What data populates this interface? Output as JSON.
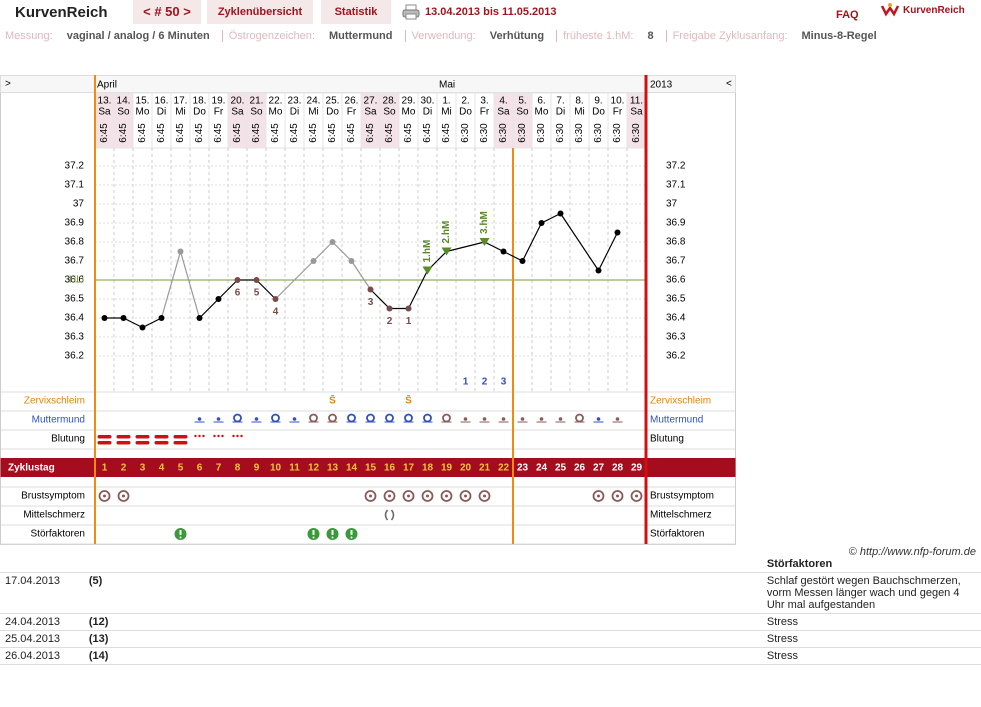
{
  "header": {
    "logo": "KurvenReich",
    "cycle_nav": "< # 50 >",
    "tabs": [
      "Zyklenübersicht",
      "Statistik"
    ],
    "date_range": "13.04.2013 bis 11.05.2013",
    "faq": "FAQ",
    "brand": "KurvenReich"
  },
  "settings": [
    {
      "label": "Messung:",
      "value": "vaginal / analog / 6 Minuten"
    },
    {
      "label": "Östrogenzeichen:",
      "value": "Muttermund"
    },
    {
      "label": "Verwendung:",
      "value": "Verhütung"
    },
    {
      "label": "früheste 1.hM:",
      "value": "8"
    },
    {
      "label": "Freigabe Zyklusanfang:",
      "value": "Minus-8-Regel"
    }
  ],
  "chart_data": {
    "type": "line",
    "nav_prev": ">",
    "nav_next": "<",
    "year": "2013",
    "month_labels": [
      "April",
      null,
      null,
      null,
      null,
      null,
      null,
      null,
      null,
      null,
      null,
      null,
      null,
      null,
      null,
      null,
      null,
      null,
      "Mai",
      null,
      null,
      null,
      null,
      null,
      null,
      null,
      null,
      null,
      null
    ],
    "categories": [
      "13.",
      "14.",
      "15.",
      "16.",
      "17.",
      "18.",
      "19.",
      "20.",
      "21.",
      "22.",
      "23.",
      "24.",
      "25.",
      "26.",
      "27.",
      "28.",
      "29.",
      "30.",
      "1.",
      "2.",
      "3.",
      "4.",
      "5.",
      "6.",
      "7.",
      "8.",
      "9.",
      "10.",
      "11."
    ],
    "weekdays": [
      "Sa",
      "So",
      "Mo",
      "Di",
      "Mi",
      "Do",
      "Fr",
      "Sa",
      "So",
      "Mo",
      "Di",
      "Mi",
      "Do",
      "Fr",
      "Sa",
      "So",
      "Mo",
      "Di",
      "Mi",
      "Do",
      "Fr",
      "Sa",
      "So",
      "Mo",
      "Di",
      "Mi",
      "Do",
      "Fr",
      "Sa"
    ],
    "times": [
      "6:45",
      "6:45",
      "6:45",
      "6:45",
      "6:45",
      "6:45",
      "6:45",
      "6:45",
      "6:45",
      "6:45",
      "6:45",
      "6:45",
      "6:45",
      "6:45",
      "6:45",
      "6:45",
      "6:45",
      "6:45",
      "6:45",
      "6:30",
      "6:30",
      "6:30",
      "6:30",
      "6:30",
      "6:30",
      "6:30",
      "6:30",
      "6:30",
      "6:30"
    ],
    "ylim": [
      36.0,
      37.3
    ],
    "yticks": [
      36.2,
      36.3,
      36.4,
      36.5,
      36.6,
      36.7,
      36.8,
      36.9,
      37,
      37.1,
      37.2
    ],
    "grid": true,
    "series": [
      {
        "color": "#000000",
        "values": [
          36.4,
          36.4,
          36.35,
          36.4,
          36.75,
          36.4,
          36.5,
          36.6,
          36.6,
          36.5,
          null,
          36.7,
          36.8,
          36.7,
          36.55,
          36.45,
          36.45,
          36.65,
          36.75,
          null,
          36.8,
          36.75,
          36.7,
          36.9,
          36.95,
          null,
          36.65,
          36.85,
          null
        ],
        "point_colors": [
          "#000000",
          "#000000",
          "#000000",
          "#000000",
          "#999999",
          "#000000",
          "#000000",
          "#7a4a4a",
          "#7a4a4a",
          "#7a4a4a",
          null,
          "#999999",
          "#999999",
          "#999999",
          "#7a4a4a",
          "#7a4a4a",
          "#7a4a4a",
          "#5a8a2a",
          "#5a8a2a",
          null,
          "#5a8a2a",
          "#000000",
          "#000000",
          "#000000",
          "#000000",
          null,
          "#000000",
          "#000000",
          null
        ]
      }
    ],
    "cover_line": {
      "label": "HLi",
      "value": 36.6,
      "color": "#7a9a3a"
    },
    "low_labels": [
      null,
      null,
      null,
      null,
      null,
      null,
      null,
      6,
      5,
      4,
      null,
      null,
      null,
      null,
      3,
      2,
      1,
      null,
      null,
      null,
      null,
      null,
      null,
      null,
      null,
      null,
      null,
      null,
      null
    ],
    "high_labels": [
      null,
      null,
      null,
      null,
      null,
      null,
      null,
      null,
      null,
      null,
      null,
      null,
      null,
      null,
      null,
      null,
      null,
      "1.hM",
      "2.hM",
      null,
      "3.hM",
      null,
      null,
      null,
      null,
      null,
      null,
      null,
      null
    ],
    "cervix_counts": [
      null,
      null,
      null,
      null,
      null,
      null,
      null,
      null,
      null,
      null,
      null,
      null,
      null,
      null,
      null,
      null,
      null,
      null,
      null,
      1,
      2,
      3,
      null,
      null,
      null,
      null,
      null,
      null,
      null
    ],
    "rows": {
      "zervixschleim": {
        "label": "Zervixschleim",
        "values": [
          null,
          null,
          null,
          null,
          null,
          null,
          null,
          null,
          null,
          null,
          null,
          null,
          "S̄",
          null,
          null,
          null,
          "S̄",
          null,
          null,
          null,
          null,
          null,
          null,
          null,
          null,
          null,
          null,
          null,
          null
        ]
      },
      "muttermund": {
        "label": "Muttermund"
      },
      "blutung": {
        "label": "Blutung"
      },
      "zyklustag": {
        "label": "Zyklustag",
        "values": [
          1,
          2,
          3,
          4,
          5,
          6,
          7,
          8,
          9,
          10,
          11,
          12,
          13,
          14,
          15,
          16,
          17,
          18,
          19,
          20,
          21,
          22,
          23,
          24,
          25,
          26,
          27,
          28,
          29
        ]
      },
      "brustsymptom": {
        "label": "Brustsymptom"
      },
      "mittelschmerz": {
        "label": "Mittelschmerz"
      },
      "stoerfaktoren": {
        "label": "Störfaktoren"
      }
    }
  },
  "copyright": "© http://www.nfp-forum.de",
  "table": {
    "header": "Störfaktoren",
    "rows": [
      [
        "17.04.2013",
        "(5)",
        "Schlaf gestört wegen Bauchschmerzen, vorm Messen länger wach und gegen 4 Uhr mal aufgestanden"
      ],
      [
        "24.04.2013",
        "(12)",
        "Stress"
      ],
      [
        "25.04.2013",
        "(13)",
        "Stress"
      ],
      [
        "26.04.2013",
        "(14)",
        "Stress"
      ]
    ]
  }
}
